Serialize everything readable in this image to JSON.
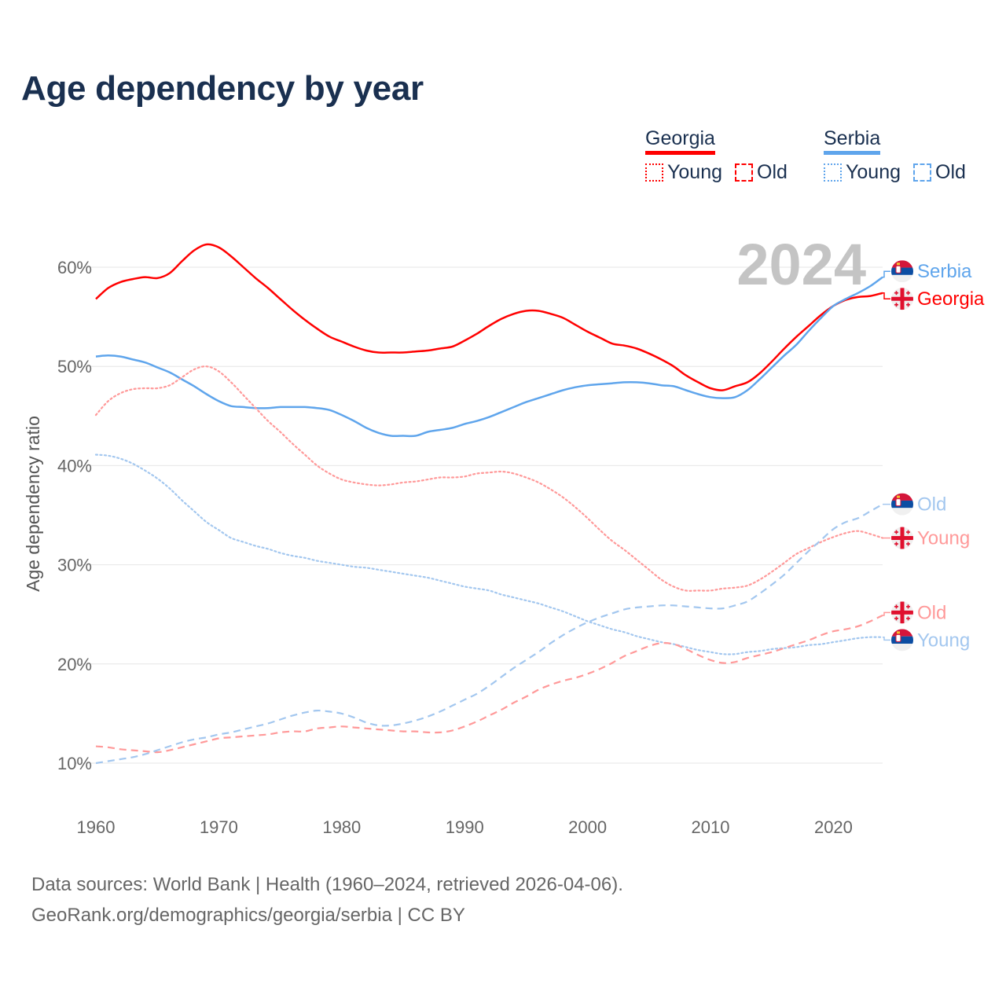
{
  "title": "Age dependency by year",
  "legend": {
    "groups": [
      {
        "country": "Georgia",
        "color": "#ff0000",
        "light": "#ff9999",
        "young": "Young",
        "old": "Old"
      },
      {
        "country": "Serbia",
        "color": "#5fa5ec",
        "light": "#a3c7ef",
        "young": "Young",
        "old": "Old"
      }
    ]
  },
  "year_watermark": "2024",
  "footer": {
    "line1": "Data sources: World Bank | Health (1960–2024, retrieved 2026-04-06).",
    "line2": "GeoRank.org/demographics/georgia/serbia | CC BY"
  },
  "chart_data": {
    "type": "line",
    "title": "Age dependency by year",
    "xlabel": "",
    "ylabel": "Age dependency ratio",
    "xlim": [
      1960,
      2024
    ],
    "ylim": [
      5,
      65
    ],
    "x_ticks": [
      1960,
      1970,
      1980,
      1990,
      2000,
      2010,
      2020
    ],
    "y_ticks": [
      10,
      20,
      30,
      40,
      50,
      60
    ],
    "y_tick_labels": [
      "10%",
      "20%",
      "30%",
      "40%",
      "50%",
      "60%"
    ],
    "grid": true,
    "legend_position": "top-right",
    "x_start": 1960,
    "series": [
      {
        "name": "Georgia",
        "label": "Georgia",
        "style": "solid",
        "color": "#ff0000",
        "flag": "georgia",
        "values": [
          56.8,
          57.9,
          58.5,
          58.8,
          59.0,
          58.9,
          59.4,
          60.6,
          61.7,
          62.3,
          62.0,
          61.1,
          60.0,
          58.9,
          57.9,
          56.8,
          55.7,
          54.7,
          53.8,
          53.0,
          52.5,
          52.0,
          51.6,
          51.4,
          51.4,
          51.4,
          51.5,
          51.6,
          51.8,
          52.0,
          52.6,
          53.3,
          54.1,
          54.8,
          55.3,
          55.6,
          55.6,
          55.3,
          54.9,
          54.2,
          53.5,
          52.9,
          52.3,
          52.1,
          51.8,
          51.3,
          50.7,
          50.0,
          49.1,
          48.4,
          47.8,
          47.6,
          48.0,
          48.4,
          49.3,
          50.5,
          51.8,
          53.0,
          54.1,
          55.2,
          56.1,
          56.7,
          57.0,
          57.1,
          57.4
        ]
      },
      {
        "name": "Serbia",
        "label": "Serbia",
        "style": "solid",
        "color": "#5fa5ec",
        "flag": "serbia",
        "values": [
          51.0,
          51.1,
          51.0,
          50.7,
          50.4,
          49.9,
          49.4,
          48.7,
          48.0,
          47.2,
          46.5,
          46.0,
          45.9,
          45.8,
          45.8,
          45.9,
          45.9,
          45.9,
          45.8,
          45.6,
          45.1,
          44.5,
          43.8,
          43.3,
          43.0,
          43.0,
          43.0,
          43.4,
          43.6,
          43.8,
          44.2,
          44.5,
          44.9,
          45.4,
          45.9,
          46.4,
          46.8,
          47.2,
          47.6,
          47.9,
          48.1,
          48.2,
          48.3,
          48.4,
          48.4,
          48.3,
          48.1,
          48.0,
          47.6,
          47.2,
          46.9,
          46.8,
          46.9,
          47.6,
          48.7,
          49.9,
          51.1,
          52.2,
          53.6,
          54.9,
          56.1,
          56.8,
          57.4,
          58.1,
          59.0
        ]
      },
      {
        "name": "Georgia Young",
        "label": "Young",
        "style": "dotted",
        "color": "#ff9999",
        "flag": "georgia",
        "values": [
          45.1,
          46.5,
          47.3,
          47.7,
          47.8,
          47.8,
          48.1,
          48.9,
          49.7,
          50.0,
          49.5,
          48.4,
          47.1,
          45.8,
          44.5,
          43.4,
          42.2,
          41.1,
          40.0,
          39.2,
          38.6,
          38.3,
          38.1,
          38.0,
          38.1,
          38.3,
          38.4,
          38.6,
          38.8,
          38.8,
          38.9,
          39.2,
          39.3,
          39.4,
          39.2,
          38.8,
          38.3,
          37.6,
          36.8,
          35.8,
          34.7,
          33.5,
          32.4,
          31.5,
          30.5,
          29.5,
          28.5,
          27.8,
          27.4,
          27.4,
          27.4,
          27.6,
          27.7,
          27.9,
          28.5,
          29.3,
          30.2,
          31.1,
          31.7,
          32.3,
          32.8,
          33.2,
          33.4,
          33.1,
          32.7
        ]
      },
      {
        "name": "Serbia Young",
        "label": "Young",
        "style": "dotted",
        "color": "#a3c7ef",
        "flag": "serbia",
        "values": [
          41.1,
          41.0,
          40.7,
          40.2,
          39.5,
          38.7,
          37.7,
          36.5,
          35.4,
          34.3,
          33.5,
          32.7,
          32.3,
          31.9,
          31.6,
          31.2,
          30.9,
          30.7,
          30.4,
          30.2,
          30.0,
          29.8,
          29.7,
          29.5,
          29.3,
          29.1,
          28.9,
          28.7,
          28.4,
          28.1,
          27.8,
          27.6,
          27.4,
          27.0,
          26.7,
          26.4,
          26.1,
          25.7,
          25.3,
          24.8,
          24.3,
          23.9,
          23.5,
          23.2,
          22.8,
          22.5,
          22.2,
          22.0,
          21.7,
          21.4,
          21.2,
          21.0,
          21.0,
          21.2,
          21.3,
          21.5,
          21.6,
          21.7,
          21.9,
          22.0,
          22.2,
          22.4,
          22.6,
          22.7,
          22.7
        ]
      },
      {
        "name": "Georgia Old",
        "label": "Old",
        "style": "dashed",
        "color": "#ff9999",
        "flag": "georgia",
        "values": [
          11.7,
          11.6,
          11.4,
          11.3,
          11.2,
          11.1,
          11.3,
          11.6,
          11.9,
          12.2,
          12.5,
          12.6,
          12.7,
          12.8,
          12.9,
          13.1,
          13.2,
          13.2,
          13.5,
          13.6,
          13.7,
          13.6,
          13.5,
          13.4,
          13.3,
          13.2,
          13.2,
          13.1,
          13.1,
          13.3,
          13.7,
          14.2,
          14.8,
          15.4,
          16.1,
          16.7,
          17.4,
          17.9,
          18.3,
          18.6,
          19.0,
          19.5,
          20.1,
          20.8,
          21.3,
          21.8,
          22.1,
          22.0,
          21.5,
          20.9,
          20.4,
          20.1,
          20.2,
          20.6,
          20.9,
          21.2,
          21.6,
          22.0,
          22.4,
          22.9,
          23.3,
          23.5,
          23.8,
          24.3,
          24.9
        ]
      },
      {
        "name": "Serbia Old",
        "label": "Old",
        "style": "dashed",
        "color": "#a3c7ef",
        "flag": "serbia",
        "values": [
          10.0,
          10.2,
          10.4,
          10.6,
          10.9,
          11.3,
          11.7,
          12.1,
          12.4,
          12.6,
          12.9,
          13.1,
          13.4,
          13.7,
          14.0,
          14.4,
          14.8,
          15.1,
          15.3,
          15.2,
          15.0,
          14.6,
          14.1,
          13.8,
          13.8,
          14.0,
          14.3,
          14.7,
          15.2,
          15.8,
          16.4,
          17.0,
          17.8,
          18.7,
          19.6,
          20.4,
          21.2,
          22.1,
          22.9,
          23.6,
          24.2,
          24.7,
          25.1,
          25.5,
          25.7,
          25.8,
          25.9,
          25.9,
          25.8,
          25.7,
          25.6,
          25.6,
          25.9,
          26.3,
          27.1,
          28.0,
          29.0,
          30.2,
          31.4,
          32.5,
          33.6,
          34.3,
          34.7,
          35.4,
          36.1
        ]
      }
    ]
  }
}
